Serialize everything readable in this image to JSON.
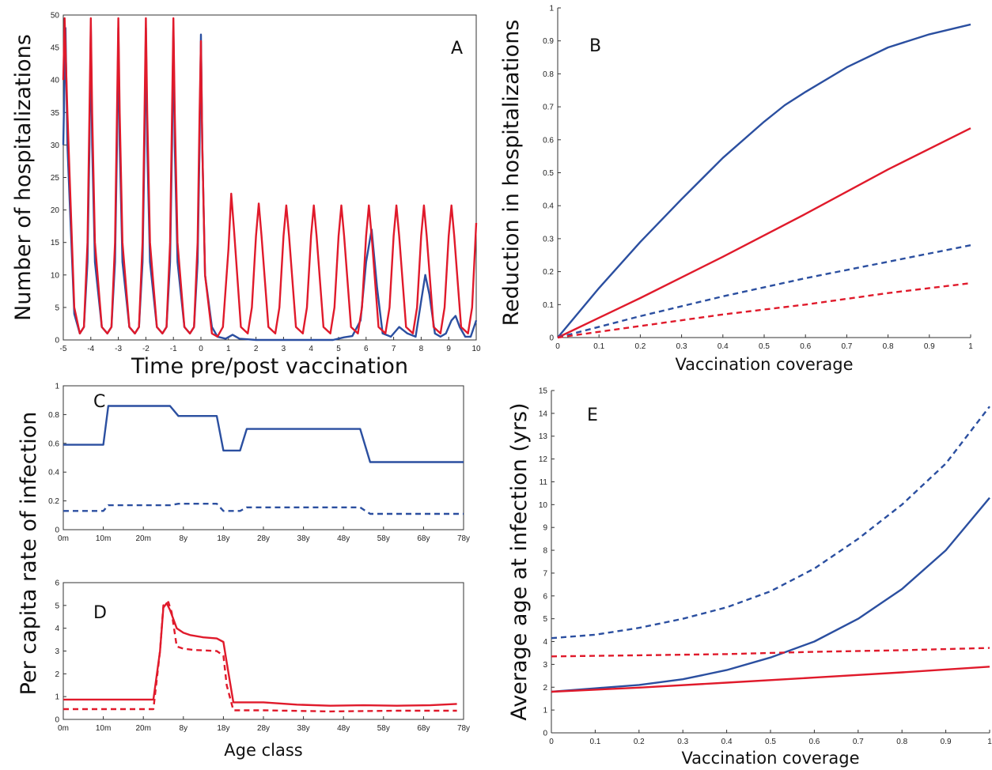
{
  "chart_data": [
    {
      "panel": "A",
      "type": "line",
      "xlabel": "Time pre/post vaccination",
      "ylabel": "Number of hospitalizations",
      "xlim": [
        -5,
        10
      ],
      "ylim": [
        0,
        50
      ],
      "xticks": [
        -5,
        -4,
        -3,
        -2,
        -1,
        0,
        1,
        2,
        3,
        4,
        5,
        6,
        7,
        8,
        9,
        10
      ],
      "yticks": [
        0,
        5,
        10,
        15,
        20,
        25,
        30,
        35,
        40,
        45,
        50
      ],
      "series": [
        {
          "color": "#2b4fa0",
          "style": "solid",
          "x": [
            -5,
            -4.92,
            -4.85,
            -4.6,
            -4.4,
            -4.25,
            -4.12,
            -4.05,
            -4,
            -3.95,
            -3.85,
            -3.6,
            -3.4,
            -3.25,
            -3.12,
            -3.05,
            -3,
            -2.95,
            -2.85,
            -2.6,
            -2.4,
            -2.25,
            -2.12,
            -2.05,
            -2,
            -1.95,
            -1.85,
            -1.6,
            -1.4,
            -1.25,
            -1.12,
            -1.05,
            -1,
            -0.95,
            -0.85,
            -0.6,
            -0.4,
            -0.25,
            -0.12,
            -0.05,
            0,
            0.05,
            0.15,
            0.4,
            0.6,
            0.9,
            1.15,
            1.4,
            2,
            3,
            4,
            4.8,
            5.2,
            5.5,
            5.8,
            6,
            6.2,
            6.4,
            6.6,
            6.9,
            7.2,
            7.5,
            7.8,
            8,
            8.15,
            8.3,
            8.5,
            8.7,
            8.9,
            9.1,
            9.25,
            9.4,
            9.6,
            9.8,
            10
          ],
          "y": [
            30,
            48,
            30,
            4,
            1,
            2,
            12,
            30,
            48,
            30,
            12,
            2,
            1,
            2,
            12,
            30,
            48,
            30,
            12,
            2,
            1,
            2,
            12,
            30,
            48,
            30,
            12,
            2,
            1,
            2,
            12,
            30,
            48,
            30,
            12,
            2,
            1,
            2,
            12,
            30,
            47,
            30,
            10,
            2,
            0.5,
            0.2,
            0.8,
            0.2,
            0,
            0,
            0,
            0,
            0.4,
            0.6,
            3,
            12,
            17,
            8,
            1,
            0.5,
            2,
            1,
            0.5,
            6,
            10,
            7,
            1,
            0.5,
            1,
            3,
            3.7,
            2,
            0.5,
            0.5,
            3
          ]
        },
        {
          "color": "#e01a2b",
          "style": "solid",
          "x": [
            -5,
            -4.95,
            -4.85,
            -4.6,
            -4.4,
            -4.25,
            -4.12,
            -4.05,
            -4,
            -3.95,
            -3.85,
            -3.6,
            -3.4,
            -3.25,
            -3.12,
            -3.05,
            -3,
            -2.95,
            -2.85,
            -2.6,
            -2.4,
            -2.25,
            -2.12,
            -2.05,
            -2,
            -1.95,
            -1.85,
            -1.6,
            -1.4,
            -1.25,
            -1.12,
            -1.05,
            -1,
            -0.95,
            -0.85,
            -0.6,
            -0.4,
            -0.25,
            -0.12,
            -0.05,
            0,
            0.05,
            0.15,
            0.4,
            0.6,
            0.8,
            1,
            1.1,
            1.2,
            1.45,
            1.7,
            1.85,
            2,
            2.1,
            2.2,
            2.45,
            2.7,
            2.85,
            3,
            3.1,
            3.2,
            3.45,
            3.7,
            3.85,
            4,
            4.1,
            4.2,
            4.45,
            4.7,
            4.85,
            5,
            5.1,
            5.2,
            5.45,
            5.7,
            5.85,
            6,
            6.1,
            6.2,
            6.45,
            6.7,
            6.85,
            7,
            7.1,
            7.2,
            7.45,
            7.7,
            7.85,
            8,
            8.1,
            8.2,
            8.45,
            8.7,
            8.85,
            9,
            9.1,
            9.2,
            9.45,
            9.7,
            9.85,
            10
          ],
          "y": [
            40,
            49.5,
            35,
            5,
            1,
            2,
            15,
            35,
            49.5,
            35,
            15,
            2,
            1,
            2,
            15,
            35,
            49.5,
            35,
            15,
            2,
            1,
            2,
            15,
            35,
            49.5,
            35,
            15,
            2,
            1,
            2,
            15,
            35,
            49.5,
            35,
            15,
            2,
            1,
            2,
            15,
            35,
            46,
            30,
            10,
            1,
            0.5,
            2,
            14,
            22.5,
            17,
            2,
            1,
            5,
            16,
            21,
            16,
            2,
            1,
            5,
            16,
            20.7,
            16,
            2,
            1,
            5,
            16,
            20.7,
            16,
            2,
            1,
            5,
            16,
            20.7,
            16,
            2,
            1,
            5,
            16,
            20.7,
            16,
            2,
            1,
            5,
            16,
            20.7,
            16,
            2,
            1,
            5,
            16,
            20.7,
            16,
            2,
            1,
            5,
            16,
            20.7,
            16,
            2,
            1,
            5,
            18
          ]
        }
      ]
    },
    {
      "panel": "B",
      "type": "line",
      "xlabel": "Vaccination coverage",
      "ylabel": "Reduction in hospitalizations",
      "xlim": [
        0,
        1
      ],
      "ylim": [
        0,
        1
      ],
      "xticks": [
        0,
        0.1,
        0.2,
        0.3,
        0.4,
        0.5,
        0.6,
        0.7,
        0.8,
        0.9,
        1
      ],
      "yticks": [
        0,
        0.1,
        0.2,
        0.3,
        0.4,
        0.5,
        0.6,
        0.7,
        0.8,
        0.9,
        1
      ],
      "series": [
        {
          "color": "#2b4fa0",
          "style": "solid",
          "x": [
            0,
            0.1,
            0.2,
            0.3,
            0.4,
            0.5,
            0.55,
            0.6,
            0.7,
            0.8,
            0.9,
            1
          ],
          "y": [
            0,
            0.15,
            0.29,
            0.42,
            0.545,
            0.655,
            0.705,
            0.745,
            0.82,
            0.88,
            0.92,
            0.95
          ]
        },
        {
          "color": "#e01a2b",
          "style": "solid",
          "x": [
            0,
            0.2,
            0.4,
            0.6,
            0.8,
            1
          ],
          "y": [
            0,
            0.12,
            0.245,
            0.375,
            0.51,
            0.635
          ]
        },
        {
          "color": "#2b4fa0",
          "style": "dashed",
          "x": [
            0,
            0.2,
            0.4,
            0.6,
            0.8,
            1
          ],
          "y": [
            0,
            0.065,
            0.125,
            0.18,
            0.23,
            0.28
          ]
        },
        {
          "color": "#e01a2b",
          "style": "dashed",
          "x": [
            0,
            0.2,
            0.4,
            0.6,
            0.8,
            1
          ],
          "y": [
            0,
            0.035,
            0.07,
            0.1,
            0.135,
            0.165
          ]
        }
      ]
    },
    {
      "panel": "C",
      "type": "line",
      "xlabel": "",
      "ylabel": "",
      "xlim": [
        0,
        12
      ],
      "ylim": [
        0,
        1
      ],
      "xticks": [
        "0m",
        "10m",
        "20m",
        "8y",
        "18y",
        "28y",
        "38y",
        "48y",
        "58y",
        "68y",
        "78y"
      ],
      "yticks": [
        0,
        0.2,
        0.4,
        0.6,
        0.8,
        1
      ],
      "series": [
        {
          "color": "#2b4fa0",
          "style": "solid",
          "x": [
            0,
            1.2,
            1.35,
            3.2,
            3.45,
            4.6,
            4.8,
            5.3,
            5.5,
            8.9,
            9.2,
            12
          ],
          "y": [
            0.59,
            0.59,
            0.86,
            0.86,
            0.79,
            0.79,
            0.55,
            0.55,
            0.7,
            0.7,
            0.47,
            0.47
          ]
        },
        {
          "color": "#2b4fa0",
          "style": "dashed",
          "x": [
            0,
            1.2,
            1.35,
            3.2,
            3.45,
            4.6,
            4.8,
            5.3,
            5.5,
            8.9,
            9.2,
            12
          ],
          "y": [
            0.13,
            0.13,
            0.17,
            0.17,
            0.18,
            0.18,
            0.13,
            0.13,
            0.155,
            0.155,
            0.11,
            0.11
          ]
        }
      ]
    },
    {
      "panel": "D",
      "type": "line",
      "xlabel": "Age class",
      "ylabel": "",
      "xlim": [
        0,
        12
      ],
      "ylim": [
        0,
        6
      ],
      "xticks": [
        "0m",
        "10m",
        "20m",
        "8y",
        "18y",
        "28y",
        "38y",
        "48y",
        "58y",
        "68y",
        "78y"
      ],
      "yticks": [
        0,
        1,
        2,
        3,
        4,
        5,
        6
      ],
      "series": [
        {
          "color": "#e01a2b",
          "style": "solid",
          "x": [
            0,
            2.7,
            2.9,
            3.0,
            3.1,
            3.2,
            3.4,
            3.6,
            3.8,
            4.2,
            4.6,
            4.8,
            4.9,
            5.1,
            5.5,
            6,
            7,
            8,
            9,
            10,
            11,
            11.8
          ],
          "y": [
            0.87,
            0.87,
            3.0,
            4.9,
            5.1,
            4.8,
            4.0,
            3.8,
            3.7,
            3.6,
            3.55,
            3.4,
            2.5,
            0.75,
            0.75,
            0.75,
            0.65,
            0.6,
            0.62,
            0.6,
            0.62,
            0.68
          ]
        },
        {
          "color": "#e01a2b",
          "style": "dashed",
          "x": [
            0,
            2.7,
            2.9,
            3.0,
            3.15,
            3.25,
            3.4,
            3.6,
            3.9,
            4.6,
            4.8,
            4.9,
            5.1,
            6,
            8,
            10,
            11.8
          ],
          "y": [
            0.45,
            0.45,
            3.0,
            5.0,
            5.15,
            4.7,
            3.2,
            3.1,
            3.05,
            3.0,
            2.8,
            1.5,
            0.4,
            0.4,
            0.35,
            0.38,
            0.38
          ]
        }
      ]
    },
    {
      "panel": "E",
      "type": "line",
      "xlabel": "Vaccination coverage",
      "ylabel": "Average age at infection (yrs)",
      "xlim": [
        0,
        1
      ],
      "ylim": [
        0,
        15
      ],
      "xticks": [
        0,
        0.1,
        0.2,
        0.3,
        0.4,
        0.5,
        0.6,
        0.7,
        0.8,
        0.9,
        1
      ],
      "yticks": [
        0,
        1,
        2,
        3,
        4,
        5,
        6,
        7,
        8,
        9,
        10,
        11,
        12,
        13,
        14,
        15
      ],
      "series": [
        {
          "color": "#2b4fa0",
          "style": "dashed",
          "x": [
            0,
            0.1,
            0.2,
            0.3,
            0.4,
            0.5,
            0.6,
            0.7,
            0.8,
            0.9,
            1
          ],
          "y": [
            4.15,
            4.3,
            4.6,
            5.0,
            5.5,
            6.2,
            7.2,
            8.5,
            10.0,
            11.8,
            14.3
          ]
        },
        {
          "color": "#2b4fa0",
          "style": "solid",
          "x": [
            0,
            0.1,
            0.2,
            0.3,
            0.4,
            0.5,
            0.6,
            0.7,
            0.8,
            0.9,
            1
          ],
          "y": [
            1.8,
            1.95,
            2.1,
            2.35,
            2.75,
            3.3,
            4.0,
            5.0,
            6.3,
            8.0,
            10.3
          ]
        },
        {
          "color": "#e01a2b",
          "style": "dashed",
          "x": [
            0,
            0.2,
            0.4,
            0.6,
            0.8,
            1
          ],
          "y": [
            3.35,
            3.4,
            3.45,
            3.55,
            3.62,
            3.72
          ]
        },
        {
          "color": "#e01a2b",
          "style": "solid",
          "x": [
            0,
            0.2,
            0.4,
            0.6,
            0.8,
            1
          ],
          "y": [
            1.8,
            1.98,
            2.2,
            2.42,
            2.65,
            2.9
          ]
        }
      ]
    }
  ],
  "shared_ylabel_cd": "Per capita rate of infection"
}
